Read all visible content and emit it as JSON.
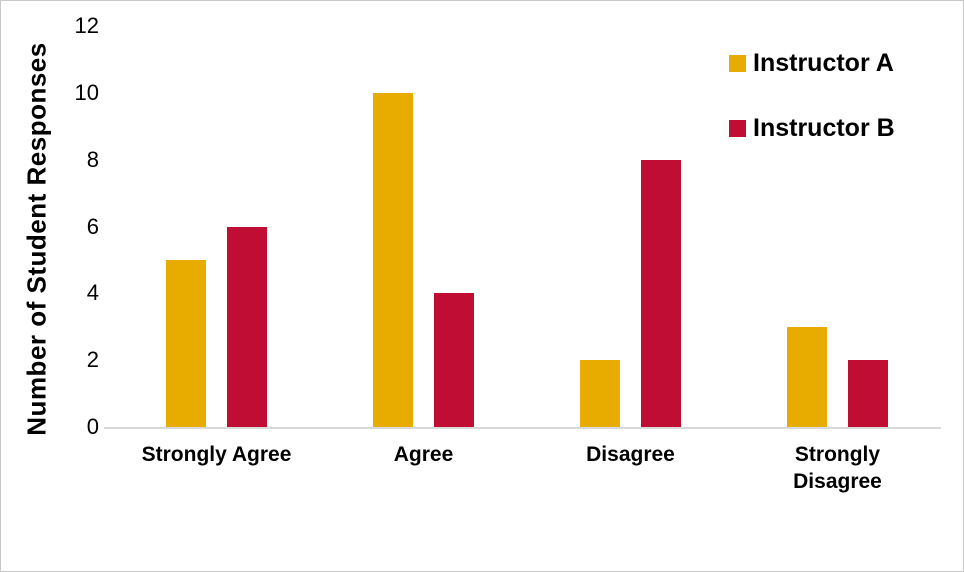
{
  "chart_data": {
    "type": "bar",
    "categories": [
      "Strongly Agree",
      "Agree",
      "Disagree",
      "Strongly\nDisagree"
    ],
    "series": [
      {
        "name": "Instructor A",
        "color": "#E8AB00",
        "values": [
          5,
          10,
          2,
          3
        ]
      },
      {
        "name": "Instructor B",
        "color": "#C00D33",
        "values": [
          6,
          4,
          8,
          2
        ]
      }
    ],
    "title": "",
    "xlabel": "",
    "ylabel": "Number of Student Responses",
    "yticks": [
      0,
      2,
      4,
      6,
      8,
      10,
      12
    ],
    "ylim": [
      0,
      12
    ],
    "grid": false,
    "legend_position": "top-right"
  },
  "colors": {
    "instructor_a": "#E8AB00",
    "instructor_b": "#C00D33",
    "axis_line": "#D9D9D9",
    "text": "#000000",
    "border": "#C8C8C8",
    "background": "#FFFFFF"
  }
}
